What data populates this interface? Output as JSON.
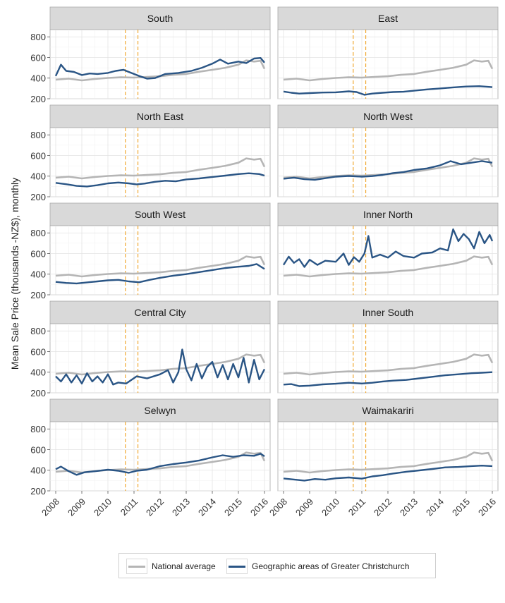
{
  "chart_data": {
    "type": "line",
    "layout": "facet-grid",
    "ylabel": "Mean Sale Price (thousands -NZ$), monthly",
    "xlabel": "",
    "x_ticks": [
      "2008",
      "2009",
      "2010",
      "2011",
      "2012",
      "2013",
      "2014",
      "2015",
      "2016"
    ],
    "y_ticks": [
      "200",
      "400",
      "600",
      "800"
    ],
    "xlim": [
      2008,
      2016
    ],
    "ylim": [
      200,
      870
    ],
    "reference_lines_x": [
      2010.67,
      2011.15
    ],
    "reference_line_color": "#f0a830",
    "grid": true,
    "legend_position": "bottom",
    "series_names": [
      "National average",
      "Geographic areas of Greater Christchurch"
    ],
    "series_colors": {
      "national": "#b5b5b5",
      "area": "#2a5585"
    },
    "national_series": [
      {
        "x": 2008.0,
        "y": 385
      },
      {
        "x": 2008.5,
        "y": 395
      },
      {
        "x": 2009.0,
        "y": 378
      },
      {
        "x": 2009.5,
        "y": 392
      },
      {
        "x": 2010.0,
        "y": 402
      },
      {
        "x": 2010.5,
        "y": 408
      },
      {
        "x": 2011.0,
        "y": 405
      },
      {
        "x": 2011.5,
        "y": 412
      },
      {
        "x": 2012.0,
        "y": 418
      },
      {
        "x": 2012.5,
        "y": 432
      },
      {
        "x": 2013.0,
        "y": 440
      },
      {
        "x": 2013.5,
        "y": 462
      },
      {
        "x": 2014.0,
        "y": 480
      },
      {
        "x": 2014.5,
        "y": 500
      },
      {
        "x": 2015.0,
        "y": 530
      },
      {
        "x": 2015.3,
        "y": 572
      },
      {
        "x": 2015.6,
        "y": 560
      },
      {
        "x": 2015.85,
        "y": 568
      },
      {
        "x": 2016.0,
        "y": 490
      }
    ],
    "panels": [
      {
        "name": "South",
        "series": [
          {
            "x": 2008.0,
            "y": 420
          },
          {
            "x": 2008.2,
            "y": 530
          },
          {
            "x": 2008.4,
            "y": 470
          },
          {
            "x": 2008.7,
            "y": 460
          },
          {
            "x": 2009.0,
            "y": 430
          },
          {
            "x": 2009.3,
            "y": 445
          },
          {
            "x": 2009.6,
            "y": 440
          },
          {
            "x": 2010.0,
            "y": 450
          },
          {
            "x": 2010.3,
            "y": 470
          },
          {
            "x": 2010.6,
            "y": 480
          },
          {
            "x": 2010.8,
            "y": 460
          },
          {
            "x": 2011.2,
            "y": 420
          },
          {
            "x": 2011.5,
            "y": 395
          },
          {
            "x": 2011.8,
            "y": 400
          },
          {
            "x": 2012.2,
            "y": 440
          },
          {
            "x": 2012.7,
            "y": 450
          },
          {
            "x": 2013.2,
            "y": 470
          },
          {
            "x": 2013.6,
            "y": 500
          },
          {
            "x": 2014.0,
            "y": 540
          },
          {
            "x": 2014.3,
            "y": 580
          },
          {
            "x": 2014.6,
            "y": 540
          },
          {
            "x": 2015.0,
            "y": 560
          },
          {
            "x": 2015.3,
            "y": 545
          },
          {
            "x": 2015.6,
            "y": 590
          },
          {
            "x": 2015.85,
            "y": 595
          },
          {
            "x": 2016.0,
            "y": 550
          }
        ]
      },
      {
        "name": "East",
        "series": [
          {
            "x": 2008.0,
            "y": 270
          },
          {
            "x": 2008.3,
            "y": 258
          },
          {
            "x": 2008.6,
            "y": 250
          },
          {
            "x": 2009.0,
            "y": 255
          },
          {
            "x": 2009.5,
            "y": 260
          },
          {
            "x": 2010.0,
            "y": 262
          },
          {
            "x": 2010.5,
            "y": 272
          },
          {
            "x": 2010.8,
            "y": 265
          },
          {
            "x": 2011.1,
            "y": 238
          },
          {
            "x": 2011.4,
            "y": 250
          },
          {
            "x": 2011.8,
            "y": 258
          },
          {
            "x": 2012.2,
            "y": 265
          },
          {
            "x": 2012.6,
            "y": 268
          },
          {
            "x": 2013.0,
            "y": 278
          },
          {
            "x": 2013.5,
            "y": 290
          },
          {
            "x": 2014.0,
            "y": 300
          },
          {
            "x": 2014.5,
            "y": 310
          },
          {
            "x": 2015.0,
            "y": 318
          },
          {
            "x": 2015.5,
            "y": 322
          },
          {
            "x": 2016.0,
            "y": 312
          }
        ]
      },
      {
        "name": "North East",
        "series": [
          {
            "x": 2008.0,
            "y": 335
          },
          {
            "x": 2008.4,
            "y": 322
          },
          {
            "x": 2008.8,
            "y": 305
          },
          {
            "x": 2009.2,
            "y": 300
          },
          {
            "x": 2009.6,
            "y": 312
          },
          {
            "x": 2010.0,
            "y": 330
          },
          {
            "x": 2010.4,
            "y": 338
          },
          {
            "x": 2010.8,
            "y": 330
          },
          {
            "x": 2011.1,
            "y": 320
          },
          {
            "x": 2011.4,
            "y": 328
          },
          {
            "x": 2011.8,
            "y": 345
          },
          {
            "x": 2012.2,
            "y": 355
          },
          {
            "x": 2012.6,
            "y": 350
          },
          {
            "x": 2013.0,
            "y": 368
          },
          {
            "x": 2013.5,
            "y": 378
          },
          {
            "x": 2014.0,
            "y": 392
          },
          {
            "x": 2014.5,
            "y": 405
          },
          {
            "x": 2015.0,
            "y": 420
          },
          {
            "x": 2015.4,
            "y": 428
          },
          {
            "x": 2015.8,
            "y": 420
          },
          {
            "x": 2016.0,
            "y": 405
          }
        ]
      },
      {
        "name": "North West",
        "series": [
          {
            "x": 2008.0,
            "y": 375
          },
          {
            "x": 2008.4,
            "y": 385
          },
          {
            "x": 2008.8,
            "y": 370
          },
          {
            "x": 2009.2,
            "y": 365
          },
          {
            "x": 2009.6,
            "y": 380
          },
          {
            "x": 2010.0,
            "y": 395
          },
          {
            "x": 2010.5,
            "y": 402
          },
          {
            "x": 2011.0,
            "y": 395
          },
          {
            "x": 2011.4,
            "y": 400
          },
          {
            "x": 2011.8,
            "y": 412
          },
          {
            "x": 2012.2,
            "y": 430
          },
          {
            "x": 2012.6,
            "y": 440
          },
          {
            "x": 2013.0,
            "y": 460
          },
          {
            "x": 2013.5,
            "y": 475
          },
          {
            "x": 2014.0,
            "y": 505
          },
          {
            "x": 2014.4,
            "y": 545
          },
          {
            "x": 2014.8,
            "y": 515
          },
          {
            "x": 2015.2,
            "y": 530
          },
          {
            "x": 2015.6,
            "y": 545
          },
          {
            "x": 2016.0,
            "y": 530
          }
        ]
      },
      {
        "name": "South West",
        "series": [
          {
            "x": 2008.0,
            "y": 325
          },
          {
            "x": 2008.4,
            "y": 315
          },
          {
            "x": 2008.8,
            "y": 310
          },
          {
            "x": 2009.2,
            "y": 320
          },
          {
            "x": 2009.6,
            "y": 330
          },
          {
            "x": 2010.0,
            "y": 340
          },
          {
            "x": 2010.4,
            "y": 345
          },
          {
            "x": 2010.8,
            "y": 330
          },
          {
            "x": 2011.2,
            "y": 322
          },
          {
            "x": 2011.6,
            "y": 345
          },
          {
            "x": 2012.0,
            "y": 365
          },
          {
            "x": 2012.5,
            "y": 385
          },
          {
            "x": 2013.0,
            "y": 400
          },
          {
            "x": 2013.5,
            "y": 420
          },
          {
            "x": 2014.0,
            "y": 440
          },
          {
            "x": 2014.5,
            "y": 460
          },
          {
            "x": 2015.0,
            "y": 472
          },
          {
            "x": 2015.4,
            "y": 480
          },
          {
            "x": 2015.7,
            "y": 498
          },
          {
            "x": 2016.0,
            "y": 450
          }
        ]
      },
      {
        "name": "Inner North",
        "series": [
          {
            "x": 2008.0,
            "y": 490
          },
          {
            "x": 2008.2,
            "y": 570
          },
          {
            "x": 2008.4,
            "y": 510
          },
          {
            "x": 2008.6,
            "y": 545
          },
          {
            "x": 2008.8,
            "y": 470
          },
          {
            "x": 2009.0,
            "y": 540
          },
          {
            "x": 2009.3,
            "y": 490
          },
          {
            "x": 2009.6,
            "y": 530
          },
          {
            "x": 2010.0,
            "y": 520
          },
          {
            "x": 2010.3,
            "y": 600
          },
          {
            "x": 2010.5,
            "y": 490
          },
          {
            "x": 2010.7,
            "y": 565
          },
          {
            "x": 2010.9,
            "y": 520
          },
          {
            "x": 2011.1,
            "y": 600
          },
          {
            "x": 2011.25,
            "y": 770
          },
          {
            "x": 2011.4,
            "y": 560
          },
          {
            "x": 2011.7,
            "y": 590
          },
          {
            "x": 2012.0,
            "y": 560
          },
          {
            "x": 2012.3,
            "y": 620
          },
          {
            "x": 2012.6,
            "y": 575
          },
          {
            "x": 2013.0,
            "y": 560
          },
          {
            "x": 2013.3,
            "y": 600
          },
          {
            "x": 2013.7,
            "y": 610
          },
          {
            "x": 2014.0,
            "y": 650
          },
          {
            "x": 2014.3,
            "y": 630
          },
          {
            "x": 2014.5,
            "y": 835
          },
          {
            "x": 2014.7,
            "y": 720
          },
          {
            "x": 2014.9,
            "y": 790
          },
          {
            "x": 2015.1,
            "y": 740
          },
          {
            "x": 2015.3,
            "y": 650
          },
          {
            "x": 2015.5,
            "y": 810
          },
          {
            "x": 2015.7,
            "y": 700
          },
          {
            "x": 2015.9,
            "y": 780
          },
          {
            "x": 2016.0,
            "y": 720
          }
        ]
      },
      {
        "name": "Central City",
        "series": [
          {
            "x": 2008.0,
            "y": 360
          },
          {
            "x": 2008.2,
            "y": 310
          },
          {
            "x": 2008.4,
            "y": 380
          },
          {
            "x": 2008.6,
            "y": 300
          },
          {
            "x": 2008.8,
            "y": 370
          },
          {
            "x": 2009.0,
            "y": 290
          },
          {
            "x": 2009.2,
            "y": 390
          },
          {
            "x": 2009.4,
            "y": 310
          },
          {
            "x": 2009.6,
            "y": 360
          },
          {
            "x": 2009.8,
            "y": 300
          },
          {
            "x": 2010.0,
            "y": 380
          },
          {
            "x": 2010.2,
            "y": 280
          },
          {
            "x": 2010.4,
            "y": 300
          },
          {
            "x": 2010.7,
            "y": 290
          },
          {
            "x": 2011.1,
            "y": 360
          },
          {
            "x": 2011.5,
            "y": 340
          },
          {
            "x": 2012.0,
            "y": 380
          },
          {
            "x": 2012.3,
            "y": 420
          },
          {
            "x": 2012.5,
            "y": 300
          },
          {
            "x": 2012.7,
            "y": 400
          },
          {
            "x": 2012.85,
            "y": 620
          },
          {
            "x": 2013.0,
            "y": 430
          },
          {
            "x": 2013.2,
            "y": 320
          },
          {
            "x": 2013.4,
            "y": 480
          },
          {
            "x": 2013.6,
            "y": 340
          },
          {
            "x": 2013.8,
            "y": 450
          },
          {
            "x": 2014.0,
            "y": 500
          },
          {
            "x": 2014.2,
            "y": 350
          },
          {
            "x": 2014.4,
            "y": 470
          },
          {
            "x": 2014.6,
            "y": 330
          },
          {
            "x": 2014.8,
            "y": 480
          },
          {
            "x": 2015.0,
            "y": 350
          },
          {
            "x": 2015.2,
            "y": 540
          },
          {
            "x": 2015.4,
            "y": 300
          },
          {
            "x": 2015.6,
            "y": 520
          },
          {
            "x": 2015.8,
            "y": 330
          },
          {
            "x": 2016.0,
            "y": 430
          }
        ]
      },
      {
        "name": "Inner South",
        "series": [
          {
            "x": 2008.0,
            "y": 280
          },
          {
            "x": 2008.3,
            "y": 285
          },
          {
            "x": 2008.6,
            "y": 265
          },
          {
            "x": 2009.0,
            "y": 270
          },
          {
            "x": 2009.5,
            "y": 282
          },
          {
            "x": 2010.0,
            "y": 288
          },
          {
            "x": 2010.5,
            "y": 298
          },
          {
            "x": 2011.0,
            "y": 290
          },
          {
            "x": 2011.4,
            "y": 298
          },
          {
            "x": 2011.8,
            "y": 310
          },
          {
            "x": 2012.2,
            "y": 318
          },
          {
            "x": 2012.7,
            "y": 325
          },
          {
            "x": 2013.2,
            "y": 340
          },
          {
            "x": 2013.7,
            "y": 355
          },
          {
            "x": 2014.2,
            "y": 370
          },
          {
            "x": 2014.7,
            "y": 380
          },
          {
            "x": 2015.2,
            "y": 390
          },
          {
            "x": 2015.6,
            "y": 395
          },
          {
            "x": 2016.0,
            "y": 400
          }
        ]
      },
      {
        "name": "Selwyn",
        "series": [
          {
            "x": 2008.0,
            "y": 410
          },
          {
            "x": 2008.2,
            "y": 435
          },
          {
            "x": 2008.5,
            "y": 390
          },
          {
            "x": 2008.8,
            "y": 355
          },
          {
            "x": 2009.1,
            "y": 380
          },
          {
            "x": 2009.5,
            "y": 390
          },
          {
            "x": 2010.0,
            "y": 405
          },
          {
            "x": 2010.4,
            "y": 395
          },
          {
            "x": 2010.8,
            "y": 375
          },
          {
            "x": 2011.1,
            "y": 395
          },
          {
            "x": 2011.5,
            "y": 405
          },
          {
            "x": 2012.0,
            "y": 440
          },
          {
            "x": 2012.5,
            "y": 460
          },
          {
            "x": 2013.0,
            "y": 475
          },
          {
            "x": 2013.5,
            "y": 495
          },
          {
            "x": 2014.0,
            "y": 525
          },
          {
            "x": 2014.4,
            "y": 545
          },
          {
            "x": 2014.8,
            "y": 530
          },
          {
            "x": 2015.2,
            "y": 545
          },
          {
            "x": 2015.6,
            "y": 540
          },
          {
            "x": 2015.85,
            "y": 560
          },
          {
            "x": 2016.0,
            "y": 535
          }
        ]
      },
      {
        "name": "Waimakariri",
        "series": [
          {
            "x": 2008.0,
            "y": 320
          },
          {
            "x": 2008.4,
            "y": 310
          },
          {
            "x": 2008.8,
            "y": 300
          },
          {
            "x": 2009.2,
            "y": 315
          },
          {
            "x": 2009.6,
            "y": 308
          },
          {
            "x": 2010.0,
            "y": 322
          },
          {
            "x": 2010.5,
            "y": 330
          },
          {
            "x": 2011.0,
            "y": 318
          },
          {
            "x": 2011.4,
            "y": 340
          },
          {
            "x": 2011.8,
            "y": 352
          },
          {
            "x": 2012.2,
            "y": 368
          },
          {
            "x": 2012.7,
            "y": 385
          },
          {
            "x": 2013.2,
            "y": 398
          },
          {
            "x": 2013.7,
            "y": 412
          },
          {
            "x": 2014.2,
            "y": 428
          },
          {
            "x": 2014.7,
            "y": 432
          },
          {
            "x": 2015.2,
            "y": 440
          },
          {
            "x": 2015.6,
            "y": 445
          },
          {
            "x": 2016.0,
            "y": 440
          }
        ]
      }
    ]
  }
}
